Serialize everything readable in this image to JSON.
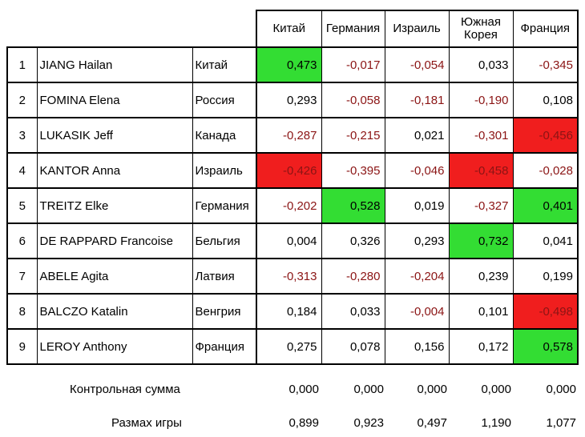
{
  "columns": [
    "Китай",
    "Германия",
    "Израиль",
    "Южная Корея",
    "Франция"
  ],
  "rows": [
    {
      "num": "1",
      "name": "JIANG Hailan",
      "country": "Китай",
      "values": [
        "0,473",
        "-0,017",
        "-0,054",
        "0,033",
        "-0,345"
      ],
      "highlight": [
        "green",
        "",
        "",
        "",
        ""
      ]
    },
    {
      "num": "2",
      "name": "FOMINA Elena",
      "country": "Россия",
      "values": [
        "0,293",
        "-0,058",
        "-0,181",
        "-0,190",
        "0,108"
      ],
      "highlight": [
        "",
        "",
        "",
        "",
        ""
      ]
    },
    {
      "num": "3",
      "name": "LUKASIK Jeff",
      "country": "Канада",
      "values": [
        "-0,287",
        "-0,215",
        "0,021",
        "-0,301",
        "-0,456"
      ],
      "highlight": [
        "",
        "",
        "",
        "",
        "red"
      ]
    },
    {
      "num": "4",
      "name": "KANTOR Anna",
      "country": "Израиль",
      "values": [
        "-0,426",
        "-0,395",
        "-0,046",
        "-0,458",
        "-0,028"
      ],
      "highlight": [
        "red",
        "",
        "",
        "red",
        ""
      ]
    },
    {
      "num": "5",
      "name": "TREITZ Elke",
      "country": "Германия",
      "values": [
        "-0,202",
        "0,528",
        "0,019",
        "-0,327",
        "0,401"
      ],
      "highlight": [
        "",
        "green",
        "",
        "",
        "green"
      ]
    },
    {
      "num": "6",
      "name": "DE RAPPARD Francoise",
      "country": "Бельгия",
      "values": [
        "0,004",
        "0,326",
        "0,293",
        "0,732",
        "0,041"
      ],
      "highlight": [
        "",
        "",
        "",
        "green",
        ""
      ]
    },
    {
      "num": "7",
      "name": "ABELE Agita",
      "country": "Латвия",
      "values": [
        "-0,313",
        "-0,280",
        "-0,204",
        "0,239",
        "0,199"
      ],
      "highlight": [
        "",
        "",
        "",
        "",
        ""
      ]
    },
    {
      "num": "8",
      "name": "BALCZO Katalin",
      "country": "Венгрия",
      "values": [
        "0,184",
        "0,033",
        "-0,004",
        "0,101",
        "-0,498"
      ],
      "highlight": [
        "",
        "",
        "",
        "",
        "red"
      ]
    },
    {
      "num": "9",
      "name": "LEROY Anthony",
      "country": "Франция",
      "values": [
        "0,275",
        "0,078",
        "0,156",
        "0,172",
        "0,578"
      ],
      "highlight": [
        "",
        "",
        "",
        "",
        "green"
      ]
    }
  ],
  "summary": {
    "checksum": {
      "label": "Контрольная сумма",
      "values": [
        "0,000",
        "0,000",
        "0,000",
        "0,000",
        "0,000"
      ]
    },
    "range": {
      "label": "Размах игры",
      "values": [
        "0,899",
        "0,923",
        "0,497",
        "1,190",
        "1,077"
      ]
    }
  },
  "colors": {
    "highlight_green": "#33dd33",
    "highlight_red": "#f01e1e",
    "negative_text": "#8b1414"
  }
}
